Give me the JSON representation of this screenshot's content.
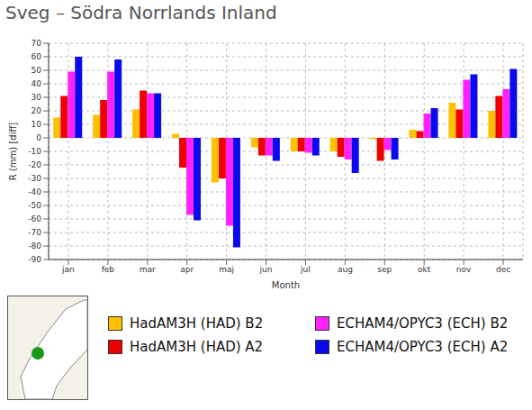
{
  "chart_data": {
    "type": "bar",
    "title": "Sveg – Södra Norrlands Inland",
    "x_label": "Month",
    "y_label": "R (mm) [diff]",
    "categories": [
      "jan",
      "feb",
      "mar",
      "apr",
      "maj",
      "jun",
      "jul",
      "aug",
      "sep",
      "okt",
      "nov",
      "dec"
    ],
    "series": [
      {
        "name": "HadAM3H (HAD) B2",
        "color": "#ffc000",
        "values": [
          15,
          17,
          21,
          3,
          -33,
          -7,
          -10,
          -10,
          -1,
          6,
          26,
          20
        ]
      },
      {
        "name": "HadAM3H (HAD) A2",
        "color": "#ee0000",
        "values": [
          31,
          28,
          35,
          -22,
          -30,
          -13,
          -10,
          -14,
          -17,
          5,
          21,
          31
        ]
      },
      {
        "name": "ECHAM4/OPYC3 (ECH) B2",
        "color": "#ff22ff",
        "values": [
          49,
          49,
          33,
          -57,
          -65,
          -13,
          -11,
          -16,
          -9,
          18,
          43,
          36
        ]
      },
      {
        "name": "ECHAM4/OPYC3 (ECH) A2",
        "color": "#0a0aee",
        "values": [
          60,
          58,
          33,
          -61,
          -81,
          -17,
          -13,
          -26,
          -16,
          22,
          47,
          51
        ]
      }
    ],
    "ylim": [
      -90,
      70
    ],
    "yticks": [
      -90,
      -80,
      -70,
      -60,
      -50,
      -40,
      -30,
      -20,
      -10,
      0,
      10,
      20,
      30,
      40,
      50,
      60,
      70
    ],
    "grid": true,
    "legend": "bottom"
  }
}
